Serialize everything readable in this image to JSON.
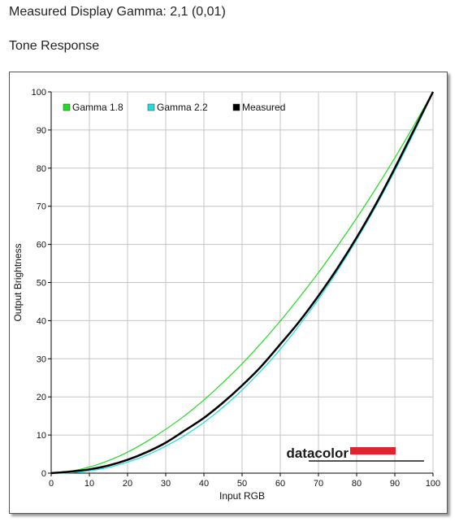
{
  "header": {
    "gamma_text": "Measured Display Gamma: 2,1 (0,01)",
    "section_title": "Tone Response"
  },
  "logo": {
    "text": "datacolor",
    "bar_color": "#e2222e"
  },
  "chart_data": {
    "type": "line",
    "xlabel": "Input RGB",
    "ylabel": "Output Brightness",
    "xlim": [
      0,
      100
    ],
    "ylim": [
      0,
      100
    ],
    "xticks": [
      0,
      10,
      20,
      30,
      40,
      50,
      60,
      70,
      80,
      90,
      100
    ],
    "yticks": [
      0,
      10,
      20,
      30,
      40,
      50,
      60,
      70,
      80,
      90,
      100
    ],
    "grid": true,
    "legend_position": "top-left",
    "series": [
      {
        "name": "Gamma 1.8",
        "color": "#22dd22",
        "x": [
          0,
          5,
          10,
          15,
          20,
          25,
          30,
          35,
          40,
          45,
          50,
          55,
          60,
          65,
          70,
          75,
          80,
          85,
          90,
          95,
          100
        ],
        "y": [
          0,
          0.5,
          1.6,
          3.3,
          5.5,
          8.3,
          11.5,
          15.1,
          19.2,
          23.8,
          28.7,
          34.1,
          39.9,
          46.1,
          52.6,
          59.6,
          66.9,
          74.6,
          82.7,
          91.2,
          100
        ]
      },
      {
        "name": "Gamma 2.2",
        "color": "#22dddd",
        "x": [
          0,
          5,
          10,
          15,
          20,
          25,
          30,
          35,
          40,
          45,
          50,
          55,
          60,
          65,
          70,
          75,
          80,
          85,
          90,
          95,
          100
        ],
        "y": [
          0,
          0.1,
          0.6,
          1.5,
          2.9,
          4.7,
          7.1,
          9.9,
          13.3,
          17.3,
          21.8,
          26.9,
          32.5,
          38.8,
          45.6,
          53.1,
          61.2,
          69.9,
          79.3,
          89.3,
          100
        ]
      },
      {
        "name": "Measured",
        "color": "#000000",
        "x": [
          0,
          5,
          10,
          15,
          20,
          25,
          30,
          35,
          40,
          45,
          50,
          55,
          60,
          65,
          70,
          75,
          80,
          85,
          90,
          95,
          100
        ],
        "y": [
          0,
          0.4,
          1.0,
          2.0,
          3.5,
          5.5,
          8.0,
          11.2,
          14.5,
          18.5,
          23.0,
          28.0,
          33.8,
          39.8,
          46.5,
          53.8,
          61.8,
          70.5,
          80.0,
          90.0,
          100
        ]
      }
    ]
  }
}
